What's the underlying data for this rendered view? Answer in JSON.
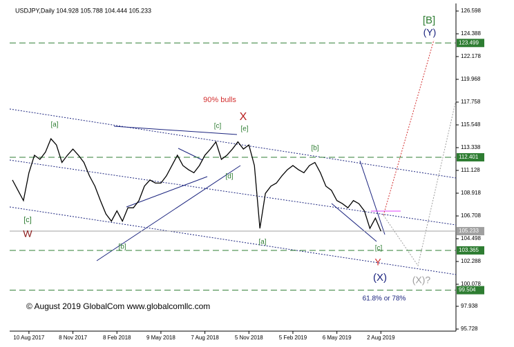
{
  "chart_data": {
    "type": "line",
    "title": "USDJPY,Daily  104.928 105.788 104.444 105.233",
    "categories": [
      null,
      null,
      null,
      "10 Aug 2017",
      null,
      null,
      null,
      null,
      null,
      null,
      null,
      "8 Nov 2017",
      null,
      null,
      null,
      null,
      null,
      null,
      null,
      "8 Feb 2018",
      null,
      null,
      null,
      null,
      null,
      null,
      null,
      "9 May 2018",
      null,
      null,
      null,
      null,
      null,
      null,
      null,
      "7 Aug 2018",
      null,
      null,
      null,
      null,
      null,
      null,
      null,
      "5 Nov 2018",
      null,
      null,
      null,
      null,
      null,
      null,
      null,
      "5 Feb 2019",
      null,
      null,
      null,
      null,
      null,
      null,
      null,
      "6 May 2019",
      null,
      null,
      null,
      null,
      null,
      null,
      null,
      "2 Aug 2019"
    ],
    "series": [
      {
        "color": "#000000",
        "values": [
          110.2,
          109.2,
          108.2,
          110.9,
          112.6,
          112.2,
          112.9,
          114.2,
          113.6,
          111.9,
          112.6,
          113.2,
          112.6,
          111.9,
          110.6,
          109.6,
          108.2,
          106.9,
          106.2,
          107.2,
          106.2,
          107.5,
          107.5,
          108.2,
          109.6,
          110.2,
          109.9,
          109.9,
          110.6,
          111.6,
          112.6,
          111.6,
          111.2,
          110.9,
          111.6,
          112.6,
          113.2,
          113.9,
          112.2,
          112.6,
          113.2,
          113.9,
          113.2,
          113.6,
          111.6,
          105.5,
          108.9,
          109.6,
          109.9,
          110.6,
          111.2,
          111.6,
          111.2,
          110.9,
          111.6,
          111.9,
          110.9,
          109.6,
          109.2,
          108.2,
          107.9,
          107.5,
          108.2,
          107.9,
          107.2,
          105.5,
          106.5,
          105.233
        ]
      }
    ],
    "ylim": [
      95.728,
      126.598
    ],
    "yticks": [
      126.598,
      124.388,
      122.178,
      119.968,
      117.758,
      115.548,
      113.338,
      111.128,
      108.918,
      106.708,
      104.498,
      102.288,
      100.078,
      97.938,
      95.728
    ],
    "levels": [
      {
        "value": 123.499,
        "color": "#2e7d32"
      },
      {
        "value": 112.401,
        "color": "#2e7d32"
      },
      {
        "value": 105.233,
        "color": "#a0a0a0"
      },
      {
        "value": 103.365,
        "color": "#2e7d32"
      },
      {
        "value": 99.504,
        "color": "#2e7d32"
      }
    ],
    "annotations": [
      {
        "text": "90% bulls",
        "color": "#d32f2f"
      },
      {
        "text": "X",
        "color": "#b71c1c"
      },
      {
        "text": "[a]",
        "color": "#2e7d32"
      },
      {
        "text": "[c]",
        "color": "#2e7d32"
      },
      {
        "text": "[e]",
        "color": "#2e7d32"
      },
      {
        "text": "[d]",
        "color": "#2e7d32"
      },
      {
        "text": "[b]",
        "color": "#2e7d32"
      },
      {
        "text": "[b]",
        "color": "#2e7d32"
      },
      {
        "text": "[a]",
        "color": "#2e7d32"
      },
      {
        "text": "[c]",
        "color": "#2e7d32"
      },
      {
        "text": "W",
        "color": "#8b1a1a"
      },
      {
        "text": "[c]",
        "color": "#2e7d32"
      },
      {
        "text": "Y",
        "color": "#d32f2f"
      },
      {
        "text": "(X)",
        "color": "#1a237e"
      },
      {
        "text": "(X)?",
        "color": "#9e9e9e"
      },
      {
        "text": "[B]",
        "color": "#2e7d32"
      },
      {
        "text": "(Y)",
        "color": "#1a237e"
      },
      {
        "text": "61.8% or 78%",
        "color": "#1a237e"
      }
    ],
    "copyright": "© August 2019 GlobalCom www.globalcomllc.com"
  }
}
